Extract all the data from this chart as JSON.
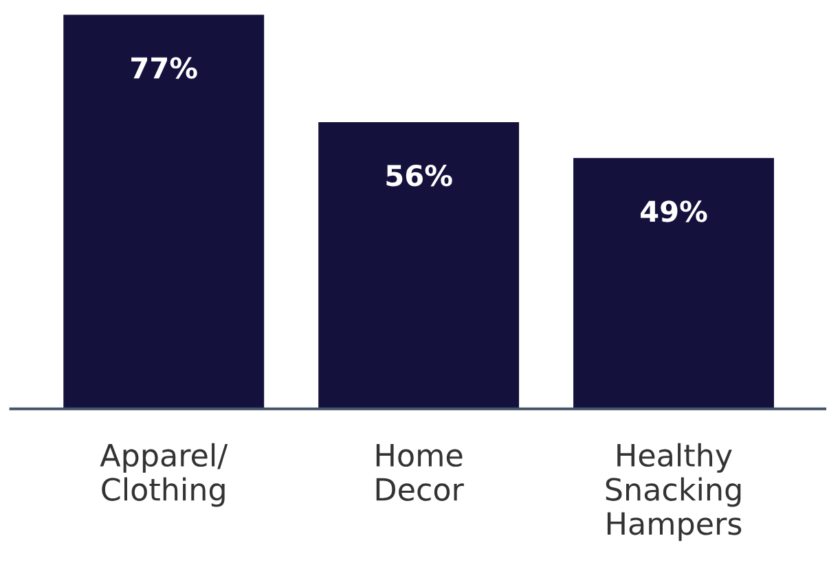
{
  "chart_data": {
    "type": "bar",
    "categories": [
      "Apparel/\nClothing",
      "Home\nDecor",
      "Healthy\nSnacking\nHampers"
    ],
    "values": [
      77,
      56,
      49
    ],
    "value_labels": [
      "77%",
      "56%",
      "49%"
    ],
    "color": "#14123d",
    "grid": false,
    "legend": false
  }
}
